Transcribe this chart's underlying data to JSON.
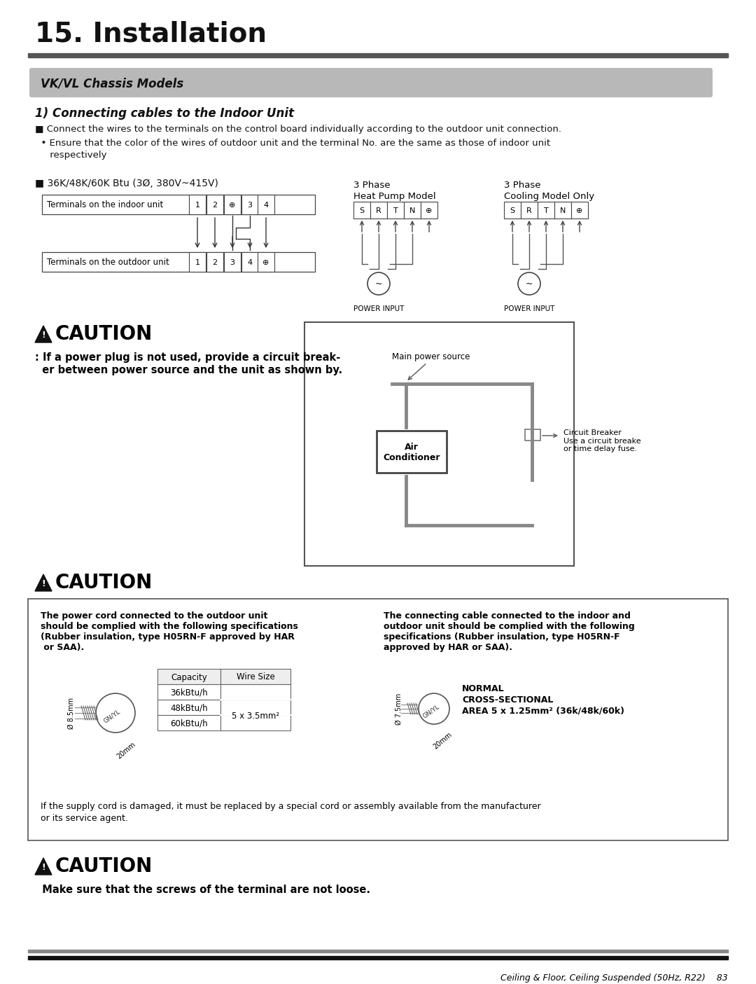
{
  "page_title": "15. Installation",
  "section_title": "VK/VL Chassis Models",
  "subsection_title": "1) Connecting cables to the Indoor Unit",
  "bullet1": "■ Connect the wires to the terminals on the control board individually according to the outdoor unit connection.",
  "bullet2_line1": "  • Ensure that the color of the wires of outdoor unit and the terminal No. are the same as those of indoor unit",
  "bullet2_line2": "     respectively",
  "btu_label": "■ 36K/48K/60K Btu (3Ø, 380V~415V)",
  "indoor_label": "Terminals on the indoor unit",
  "outdoor_label": "Terminals on the outdoor unit",
  "terminal_labels_in": [
    "1",
    "2",
    "⊕",
    "3",
    "4"
  ],
  "terminal_labels_out": [
    "1",
    "2",
    "3",
    "4",
    "⊕"
  ],
  "phase1_line1": "3 Phase",
  "phase1_line2": "Heat Pump Model",
  "phase2_line1": "3 Phase",
  "phase2_line2": "Cooling Model Only",
  "hp_labels": [
    "S",
    "R",
    "T",
    "N",
    "⊕"
  ],
  "cm_labels": [
    "S",
    "R",
    "T",
    "N",
    "⊕"
  ],
  "power_input": "POWER INPUT",
  "caution1_title": "CAUTION",
  "caution1_text_line1": ": If a power plug is not used, provide a circuit break-",
  "caution1_text_line2": "  er between power source and the unit as shown by.",
  "main_power_label": "Main power source",
  "air_cond_label": "Air\nConditioner",
  "circuit_breaker_label": "Circuit Breaker\nUse a circuit breake\nor time delay fuse.",
  "caution2_title": "CAUTION",
  "caution2_left_line1": "The power cord connected to the outdoor unit",
  "caution2_left_line2": "should be complied with the following specifications",
  "caution2_left_line3": "(Rubber insulation, type H05RN-F approved by HAR",
  "caution2_left_line4": " or SAA).",
  "caution2_right_line1": "The connecting cable connected to the indoor and",
  "caution2_right_line2": "outdoor unit should be complied with the following",
  "caution2_right_line3": "specifications (Rubber insulation, type H05RN-F",
  "caution2_right_line4": "approved by HAR or SAA).",
  "table_cap": "Capacity",
  "table_wire": "Wire Size",
  "table_rows": [
    [
      "36kBtu/h",
      ""
    ],
    [
      "48kBtu/h",
      "5 x 3.5mm²"
    ],
    [
      "60kBtu/h",
      ""
    ]
  ],
  "gnyl_label": "GN/YL",
  "diam_left": "Ø 8.5mm",
  "diam_right": "Ø 7.5mm",
  "mm20": "20mm",
  "normal_label_line1": "NORMAL",
  "normal_label_line2": "CROSS-SECTIONAL",
  "normal_label_line3": "AREA 5 x 1.25mm² (36k/48k/60k)",
  "footer_text_line1": "If the supply cord is damaged, it must be replaced by a special cord or assembly available from the manufacturer",
  "footer_text_line2": "or its service agent.",
  "caution3_title": "CAUTION",
  "caution3_text": "  Make sure that the screws of the terminal are not loose.",
  "page_footer": "Ceiling & Floor, Ceiling Suspended (50Hz, R22)    83",
  "bg_color": "#ffffff"
}
